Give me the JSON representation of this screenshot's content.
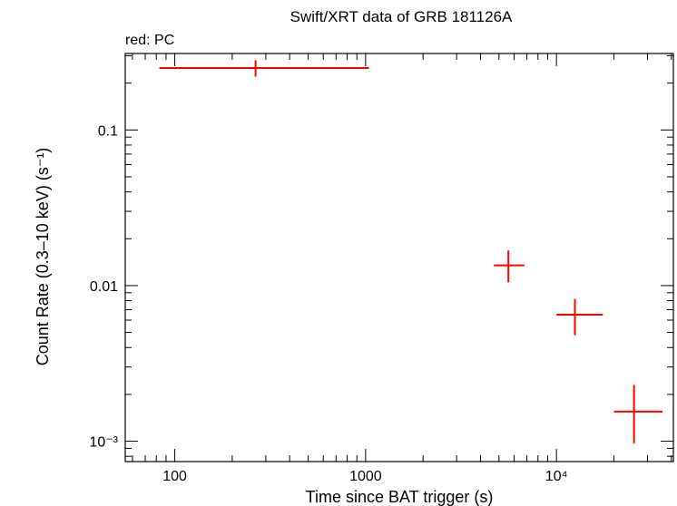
{
  "chart_data": {
    "type": "scatter",
    "title": "Swift/XRT data of GRB 181126A",
    "subtitle": "red: PC",
    "xlabel": "Time since BAT trigger (s)",
    "ylabel": "Count Rate (0.3–10 keV) (s⁻¹)",
    "x_scale": "log",
    "y_scale": "log",
    "xlim": [
      55,
      41000
    ],
    "ylim": [
      0.00074,
      0.31
    ],
    "x_ticks": [
      {
        "value": 100,
        "label": "100"
      },
      {
        "value": 1000,
        "label": "1000"
      },
      {
        "value": 10000,
        "label": "10⁴"
      }
    ],
    "y_ticks": [
      {
        "value": 0.1,
        "label": "0.1"
      },
      {
        "value": 0.01,
        "label": "0.01"
      },
      {
        "value": 0.001,
        "label": "10⁻³"
      }
    ],
    "series": [
      {
        "name": "PC",
        "color": "#ff0000",
        "points": [
          {
            "x": 265,
            "xlo": 83,
            "xhi": 1040,
            "y": 0.25,
            "ylo": 0.22,
            "yhi": 0.28
          },
          {
            "x": 5600,
            "xlo": 4700,
            "xhi": 6800,
            "y": 0.0135,
            "ylo": 0.0105,
            "yhi": 0.0168
          },
          {
            "x": 12500,
            "xlo": 10000,
            "xhi": 17500,
            "y": 0.0065,
            "ylo": 0.0048,
            "yhi": 0.0082
          },
          {
            "x": 25500,
            "xlo": 20000,
            "xhi": 36000,
            "y": 0.00155,
            "ylo": 0.00097,
            "yhi": 0.0023
          }
        ]
      }
    ],
    "grid": false,
    "legend": "none"
  }
}
